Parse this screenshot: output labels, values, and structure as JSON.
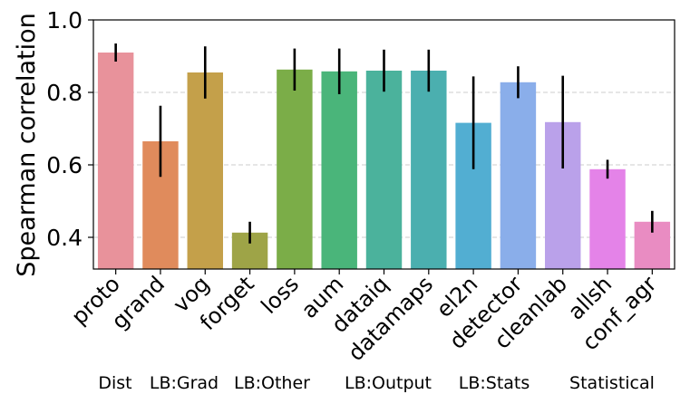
{
  "chart_data": {
    "type": "bar",
    "y_label": "Spearman correlation",
    "categories": [
      "proto",
      "grand",
      "vog",
      "forget",
      "loss",
      "aum",
      "dataiq",
      "datamaps",
      "el2n",
      "detector",
      "cleanlab",
      "allsh",
      "conf_agr"
    ],
    "values": [
      0.91,
      0.665,
      0.855,
      0.413,
      0.863,
      0.858,
      0.86,
      0.86,
      0.716,
      0.828,
      0.718,
      0.588,
      0.443
    ],
    "errors": [
      0.025,
      0.098,
      0.072,
      0.03,
      0.058,
      0.063,
      0.058,
      0.058,
      0.128,
      0.044,
      0.128,
      0.026,
      0.03
    ],
    "colors": [
      "#e8929b",
      "#e08b5c",
      "#c4a04a",
      "#9ea447",
      "#7bad48",
      "#4ab57a",
      "#4bb29c",
      "#4bafaf",
      "#52aed2",
      "#8aaeea",
      "#baa1ea",
      "#e483e8",
      "#e98cc2"
    ],
    "groups": [
      "Dist",
      "LB:Grad",
      "LB:Other",
      "LB:Output",
      "LB:Stats",
      "Statistical"
    ],
    "ylim": [
      0.3125,
      1.0
    ],
    "yticks": [
      {
        "value": 1.0,
        "label": "1.0"
      },
      0.8,
      0.6,
      0.4
    ],
    "grid": true
  }
}
